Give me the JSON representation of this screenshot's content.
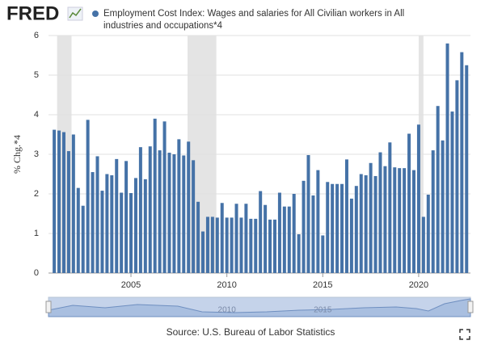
{
  "logo": "FRED",
  "chart_data": {
    "type": "bar",
    "series": [
      {
        "name": "Employment Cost Index: Wages and salaries for All Civilian workers in All industries and occupations*4",
        "color": "#4572a7",
        "x": [
          2001,
          2001.25,
          2001.5,
          2001.75,
          2002,
          2002.25,
          2002.5,
          2002.75,
          2003,
          2003.25,
          2003.5,
          2003.75,
          2004,
          2004.25,
          2004.5,
          2004.75,
          2005,
          2005.25,
          2005.5,
          2005.75,
          2006,
          2006.25,
          2006.5,
          2006.75,
          2007,
          2007.25,
          2007.5,
          2007.75,
          2008,
          2008.25,
          2008.5,
          2008.75,
          2009,
          2009.25,
          2009.5,
          2009.75,
          2010,
          2010.25,
          2010.5,
          2010.75,
          2011,
          2011.25,
          2011.5,
          2011.75,
          2012,
          2012.25,
          2012.5,
          2012.75,
          2013,
          2013.25,
          2013.5,
          2013.75,
          2014,
          2014.25,
          2014.5,
          2014.75,
          2015,
          2015.25,
          2015.5,
          2015.75,
          2016,
          2016.25,
          2016.5,
          2016.75,
          2017,
          2017.25,
          2017.5,
          2017.75,
          2018,
          2018.25,
          2018.5,
          2018.75,
          2019,
          2019.25,
          2019.5,
          2019.75,
          2020,
          2020.25,
          2020.5,
          2020.75,
          2021,
          2021.25,
          2021.5,
          2021.75,
          2022,
          2022.25,
          2022.5
        ],
        "values": [
          3.62,
          3.6,
          3.56,
          3.08,
          3.5,
          2.15,
          1.7,
          3.87,
          2.55,
          2.95,
          2.08,
          2.5,
          2.47,
          2.88,
          2.03,
          2.83,
          2.02,
          2.4,
          3.18,
          2.37,
          3.2,
          3.9,
          3.1,
          3.83,
          3.04,
          3.0,
          3.38,
          2.97,
          3.32,
          2.85,
          1.8,
          1.05,
          1.42,
          1.42,
          1.4,
          1.77,
          1.4,
          1.4,
          1.75,
          1.4,
          1.75,
          1.37,
          1.37,
          2.07,
          1.72,
          1.35,
          1.35,
          2.03,
          1.68,
          1.68,
          2.0,
          0.98,
          2.33,
          2.98,
          1.96,
          2.6,
          0.95,
          2.3,
          2.25,
          2.25,
          2.25,
          2.87,
          1.88,
          2.2,
          2.5,
          2.47,
          2.78,
          2.45,
          3.05,
          2.7,
          3.3,
          2.67,
          2.65,
          2.65,
          3.52,
          2.6,
          3.75,
          1.42,
          1.98,
          3.1,
          4.22,
          3.35,
          5.8,
          4.08,
          4.87,
          5.58,
          5.25
        ]
      }
    ],
    "y_label": "% Chg.*4",
    "xlim": [
      2000.7,
      2022.7
    ],
    "xticks": [
      2005,
      2010,
      2015,
      2020
    ],
    "ylim": [
      0,
      6
    ],
    "yticks": [
      0,
      1,
      2,
      3,
      4,
      5,
      6
    ],
    "grid": true,
    "shaded_ranges": [
      [
        2001.15,
        2001.9
      ],
      [
        2007.95,
        2009.45
      ],
      [
        2020.0,
        2020.25
      ]
    ],
    "source": "Source: U.S. Bureau of Labor Statistics",
    "navigator_labels": [
      "2010",
      "2015"
    ]
  }
}
